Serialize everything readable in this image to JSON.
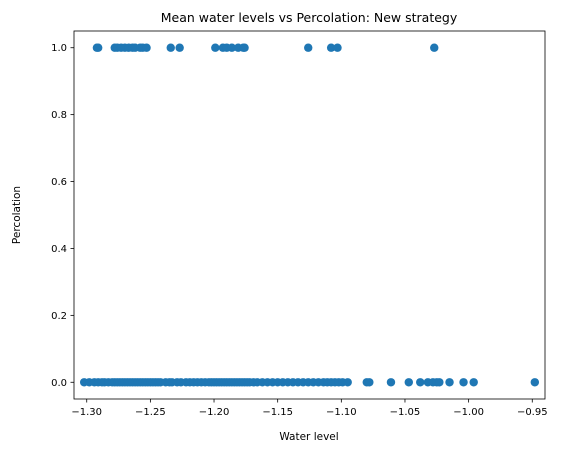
{
  "chart_data": {
    "type": "scatter",
    "title": "Mean water levels vs Percolation: New strategy",
    "xlabel": "Water level",
    "ylabel": "Percolation",
    "xlim": [
      -1.31,
      -0.94
    ],
    "ylim": [
      -0.05,
      1.05
    ],
    "xticks": [
      -1.3,
      -1.25,
      -1.2,
      -1.15,
      -1.1,
      -1.05,
      -1.0,
      -0.95
    ],
    "xtick_labels": [
      "−1.30",
      "−1.25",
      "−1.20",
      "−1.15",
      "−1.10",
      "−1.05",
      "−1.00",
      "−0.95"
    ],
    "yticks": [
      0.0,
      0.2,
      0.4,
      0.6,
      0.8,
      1.0
    ],
    "ytick_labels": [
      "0.0",
      "0.2",
      "0.4",
      "0.6",
      "0.8",
      "1.0"
    ],
    "grid": false,
    "marker_color": "#1f77b4",
    "points": [
      {
        "x": -1.292,
        "y": 1
      },
      {
        "x": -1.291,
        "y": 1
      },
      {
        "x": -1.278,
        "y": 1
      },
      {
        "x": -1.276,
        "y": 1
      },
      {
        "x": -1.273,
        "y": 1
      },
      {
        "x": -1.27,
        "y": 1
      },
      {
        "x": -1.267,
        "y": 1
      },
      {
        "x": -1.264,
        "y": 1
      },
      {
        "x": -1.262,
        "y": 1
      },
      {
        "x": -1.258,
        "y": 1
      },
      {
        "x": -1.256,
        "y": 1
      },
      {
        "x": -1.253,
        "y": 1
      },
      {
        "x": -1.234,
        "y": 1
      },
      {
        "x": -1.227,
        "y": 1
      },
      {
        "x": -1.199,
        "y": 1
      },
      {
        "x": -1.193,
        "y": 1
      },
      {
        "x": -1.19,
        "y": 1
      },
      {
        "x": -1.186,
        "y": 1
      },
      {
        "x": -1.181,
        "y": 1
      },
      {
        "x": -1.177,
        "y": 1
      },
      {
        "x": -1.176,
        "y": 1
      },
      {
        "x": -1.126,
        "y": 1
      },
      {
        "x": -1.108,
        "y": 1
      },
      {
        "x": -1.103,
        "y": 1
      },
      {
        "x": -1.027,
        "y": 1
      },
      {
        "x": -1.302,
        "y": 0
      },
      {
        "x": -1.298,
        "y": 0
      },
      {
        "x": -1.294,
        "y": 0
      },
      {
        "x": -1.291,
        "y": 0
      },
      {
        "x": -1.288,
        "y": 0
      },
      {
        "x": -1.286,
        "y": 0
      },
      {
        "x": -1.283,
        "y": 0
      },
      {
        "x": -1.28,
        "y": 0
      },
      {
        "x": -1.278,
        "y": 0
      },
      {
        "x": -1.276,
        "y": 0
      },
      {
        "x": -1.274,
        "y": 0
      },
      {
        "x": -1.272,
        "y": 0
      },
      {
        "x": -1.27,
        "y": 0
      },
      {
        "x": -1.268,
        "y": 0
      },
      {
        "x": -1.266,
        "y": 0
      },
      {
        "x": -1.264,
        "y": 0
      },
      {
        "x": -1.262,
        "y": 0
      },
      {
        "x": -1.26,
        "y": 0
      },
      {
        "x": -1.258,
        "y": 0
      },
      {
        "x": -1.256,
        "y": 0
      },
      {
        "x": -1.254,
        "y": 0
      },
      {
        "x": -1.252,
        "y": 0
      },
      {
        "x": -1.25,
        "y": 0
      },
      {
        "x": -1.248,
        "y": 0
      },
      {
        "x": -1.246,
        "y": 0
      },
      {
        "x": -1.244,
        "y": 0
      },
      {
        "x": -1.242,
        "y": 0
      },
      {
        "x": -1.238,
        "y": 0
      },
      {
        "x": -1.235,
        "y": 0
      },
      {
        "x": -1.233,
        "y": 0
      },
      {
        "x": -1.229,
        "y": 0
      },
      {
        "x": -1.226,
        "y": 0
      },
      {
        "x": -1.222,
        "y": 0
      },
      {
        "x": -1.219,
        "y": 0
      },
      {
        "x": -1.216,
        "y": 0
      },
      {
        "x": -1.213,
        "y": 0
      },
      {
        "x": -1.21,
        "y": 0
      },
      {
        "x": -1.207,
        "y": 0
      },
      {
        "x": -1.204,
        "y": 0
      },
      {
        "x": -1.202,
        "y": 0
      },
      {
        "x": -1.2,
        "y": 0
      },
      {
        "x": -1.198,
        "y": 0
      },
      {
        "x": -1.196,
        "y": 0
      },
      {
        "x": -1.194,
        "y": 0
      },
      {
        "x": -1.192,
        "y": 0
      },
      {
        "x": -1.19,
        "y": 0
      },
      {
        "x": -1.188,
        "y": 0
      },
      {
        "x": -1.186,
        "y": 0
      },
      {
        "x": -1.184,
        "y": 0
      },
      {
        "x": -1.182,
        "y": 0
      },
      {
        "x": -1.18,
        "y": 0
      },
      {
        "x": -1.178,
        "y": 0
      },
      {
        "x": -1.176,
        "y": 0
      },
      {
        "x": -1.174,
        "y": 0
      },
      {
        "x": -1.172,
        "y": 0
      },
      {
        "x": -1.169,
        "y": 0
      },
      {
        "x": -1.166,
        "y": 0
      },
      {
        "x": -1.162,
        "y": 0
      },
      {
        "x": -1.158,
        "y": 0
      },
      {
        "x": -1.154,
        "y": 0
      },
      {
        "x": -1.15,
        "y": 0
      },
      {
        "x": -1.146,
        "y": 0
      },
      {
        "x": -1.142,
        "y": 0
      },
      {
        "x": -1.138,
        "y": 0
      },
      {
        "x": -1.134,
        "y": 0
      },
      {
        "x": -1.13,
        "y": 0
      },
      {
        "x": -1.126,
        "y": 0
      },
      {
        "x": -1.122,
        "y": 0
      },
      {
        "x": -1.118,
        "y": 0
      },
      {
        "x": -1.114,
        "y": 0
      },
      {
        "x": -1.111,
        "y": 0
      },
      {
        "x": -1.108,
        "y": 0
      },
      {
        "x": -1.105,
        "y": 0
      },
      {
        "x": -1.102,
        "y": 0
      },
      {
        "x": -1.099,
        "y": 0
      },
      {
        "x": -1.095,
        "y": 0
      },
      {
        "x": -1.08,
        "y": 0
      },
      {
        "x": -1.078,
        "y": 0
      },
      {
        "x": -1.061,
        "y": 0
      },
      {
        "x": -1.047,
        "y": 0
      },
      {
        "x": -1.038,
        "y": 0
      },
      {
        "x": -1.032,
        "y": 0
      },
      {
        "x": -1.028,
        "y": 0
      },
      {
        "x": -1.025,
        "y": 0
      },
      {
        "x": -1.023,
        "y": 0
      },
      {
        "x": -1.015,
        "y": 0
      },
      {
        "x": -1.004,
        "y": 0
      },
      {
        "x": -0.996,
        "y": 0
      },
      {
        "x": -0.948,
        "y": 0
      }
    ]
  }
}
